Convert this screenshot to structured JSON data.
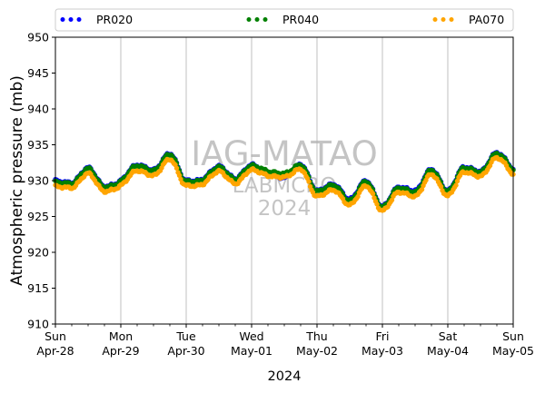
{
  "chart_data": {
    "type": "scatter",
    "xlabel": "2024",
    "ylabel": "Atmospheric pressure (mb)",
    "ylim": [
      910,
      950
    ],
    "yticks": [
      910,
      915,
      920,
      925,
      930,
      935,
      940,
      945,
      950
    ],
    "xlim": [
      "2024-04-28",
      "2024-05-05"
    ],
    "xticks": [
      {
        "day": "Sun",
        "date": "Apr-28"
      },
      {
        "day": "Mon",
        "date": "Apr-29"
      },
      {
        "day": "Tue",
        "date": "Apr-30"
      },
      {
        "day": "Wed",
        "date": "May-01"
      },
      {
        "day": "Thu",
        "date": "May-02"
      },
      {
        "day": "Fri",
        "date": "May-03"
      },
      {
        "day": "Sat",
        "date": "May-04"
      },
      {
        "day": "Sun",
        "date": "May-05"
      }
    ],
    "grid": "vertical",
    "legend_position": "top",
    "watermark": [
      "IAG-MATAO",
      "LABMCRO",
      "2024"
    ],
    "series": [
      {
        "name": "PR020",
        "color": "#0000ff",
        "x": [
          "2024-04-28 00:00",
          "2024-04-28 06:00",
          "2024-04-28 12:00",
          "2024-04-28 18:00",
          "2024-04-29 00:00",
          "2024-04-29 06:00",
          "2024-04-29 12:00",
          "2024-04-29 18:00",
          "2024-04-30 00:00",
          "2024-04-30 06:00",
          "2024-04-30 12:00",
          "2024-04-30 18:00",
          "2024-05-01 00:00",
          "2024-05-01 06:00",
          "2024-05-01 12:00",
          "2024-05-01 18:00",
          "2024-05-02 00:00",
          "2024-05-02 06:00",
          "2024-05-02 12:00",
          "2024-05-02 18:00",
          "2024-05-03 00:00",
          "2024-05-03 06:00",
          "2024-05-03 12:00",
          "2024-05-03 18:00",
          "2024-05-04 00:00",
          "2024-05-04 06:00",
          "2024-05-04 12:00",
          "2024-05-04 18:00",
          "2024-05-05 00:00"
        ],
        "y": [
          930.0,
          929.7,
          931.8,
          929.2,
          930.0,
          932.2,
          931.5,
          933.8,
          930.0,
          930.2,
          932.0,
          930.3,
          932.2,
          931.0,
          930.4,
          932.3,
          928.6,
          929.5,
          927.4,
          930.0,
          926.4,
          929.1,
          928.6,
          931.6,
          928.6,
          931.9,
          931.3,
          933.9,
          931.5
        ]
      },
      {
        "name": "PR040",
        "color": "#008000",
        "x": [
          "2024-04-28 00:00",
          "2024-04-28 06:00",
          "2024-04-28 12:00",
          "2024-04-28 18:00",
          "2024-04-29 00:00",
          "2024-04-29 06:00",
          "2024-04-29 12:00",
          "2024-04-29 18:00",
          "2024-04-30 00:00",
          "2024-04-30 06:00",
          "2024-04-30 12:00",
          "2024-04-30 18:00",
          "2024-05-01 00:00",
          "2024-05-01 06:00",
          "2024-05-01 12:00",
          "2024-05-01 18:00",
          "2024-05-02 00:00",
          "2024-05-02 06:00",
          "2024-05-02 12:00",
          "2024-05-02 18:00",
          "2024-05-03 00:00",
          "2024-05-03 06:00",
          "2024-05-03 12:00",
          "2024-05-03 18:00",
          "2024-05-04 00:00",
          "2024-05-04 06:00",
          "2024-05-04 12:00",
          "2024-05-04 18:00",
          "2024-05-05 00:00"
        ],
        "y": [
          929.8,
          929.6,
          931.7,
          929.1,
          929.9,
          932.1,
          931.4,
          933.7,
          929.9,
          930.1,
          931.9,
          930.2,
          932.1,
          931.3,
          931.0,
          932.2,
          928.5,
          929.4,
          927.2,
          929.9,
          926.3,
          929.0,
          928.4,
          931.5,
          928.5,
          931.8,
          931.2,
          933.8,
          931.4
        ]
      },
      {
        "name": "PA070",
        "color": "#ffa500",
        "x": [
          "2024-04-28 00:00",
          "2024-04-28 06:00",
          "2024-04-28 12:00",
          "2024-04-28 18:00",
          "2024-04-29 00:00",
          "2024-04-29 06:00",
          "2024-04-29 12:00",
          "2024-04-29 18:00",
          "2024-04-30 00:00",
          "2024-04-30 06:00",
          "2024-04-30 12:00",
          "2024-04-30 18:00",
          "2024-05-01 00:00",
          "2024-05-01 06:00",
          "2024-05-01 12:00",
          "2024-05-01 18:00",
          "2024-05-02 00:00",
          "2024-05-02 06:00",
          "2024-05-02 12:00",
          "2024-05-02 18:00",
          "2024-05-03 00:00",
          "2024-05-03 06:00",
          "2024-05-03 12:00",
          "2024-05-03 18:00",
          "2024-05-04 00:00",
          "2024-05-04 06:00",
          "2024-05-04 12:00",
          "2024-05-04 18:00",
          "2024-05-05 00:00"
        ],
        "y": [
          929.2,
          929.0,
          931.0,
          928.5,
          929.3,
          931.4,
          930.7,
          933.0,
          929.3,
          929.5,
          931.3,
          929.6,
          931.5,
          930.7,
          930.5,
          931.6,
          927.8,
          928.7,
          926.6,
          929.3,
          925.8,
          928.4,
          927.8,
          930.9,
          927.9,
          931.2,
          930.6,
          933.2,
          930.8
        ]
      }
    ]
  }
}
